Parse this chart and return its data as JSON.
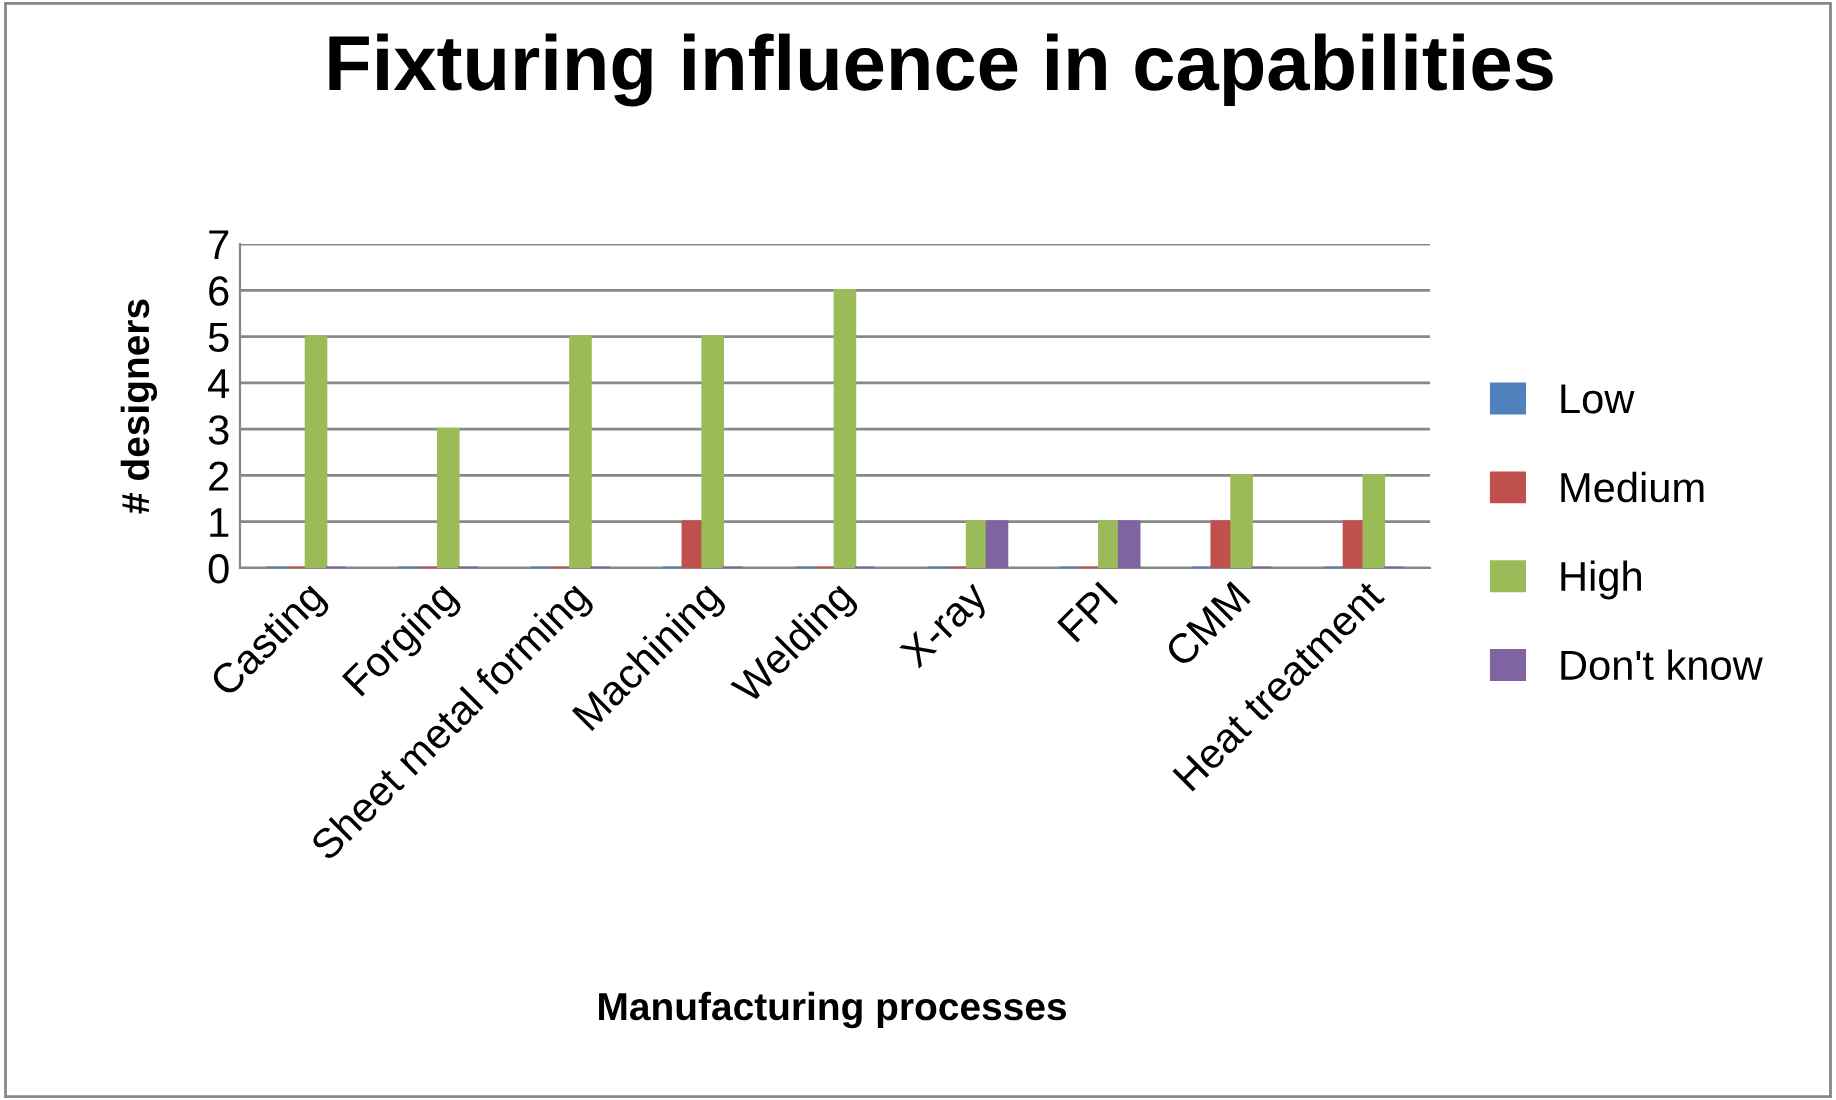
{
  "chart_data": {
    "type": "bar",
    "title": "Fixturing influence in capabilities",
    "xlabel": "Manufacturing processes",
    "ylabel": "# designers",
    "categories": [
      "Casting",
      "Forging",
      "Sheet metal forming",
      "Machining",
      "Welding",
      "X-ray",
      "FPI",
      "CMM",
      "Heat treatment"
    ],
    "series": [
      {
        "name": "Low",
        "color": "#4f81bd",
        "values": [
          0,
          0,
          0,
          0,
          0,
          0,
          0,
          0,
          0
        ]
      },
      {
        "name": "Medium",
        "color": "#c0504d",
        "values": [
          0,
          0,
          0,
          1,
          0,
          0,
          0,
          1,
          1
        ]
      },
      {
        "name": "High",
        "color": "#9bbb59",
        "values": [
          5,
          3,
          5,
          5,
          6,
          1,
          1,
          2,
          2
        ]
      },
      {
        "name": "Don't know",
        "color": "#8064a2",
        "values": [
          0,
          0,
          0,
          0,
          0,
          1,
          1,
          0,
          0
        ]
      }
    ],
    "ylim": [
      0,
      7
    ],
    "yticks": [
      0,
      1,
      2,
      3,
      4,
      5,
      6,
      7
    ],
    "grid": "y",
    "legend": "right"
  }
}
